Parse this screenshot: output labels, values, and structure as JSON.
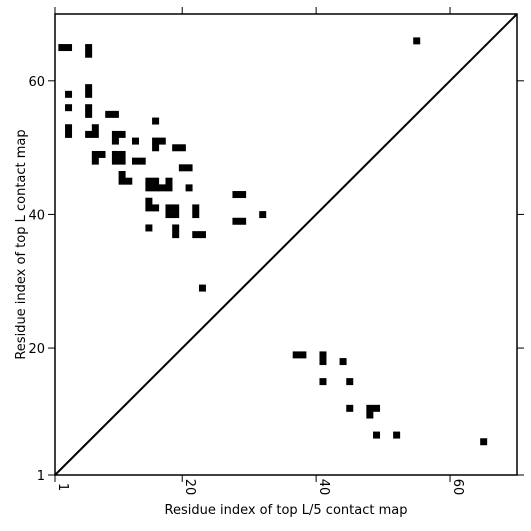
{
  "chart_data": {
    "type": "scatter",
    "title": "",
    "xlabel": "Residue index of top L/5 contact map",
    "ylabel": "Residue index of top L contact map",
    "xlim": [
      1,
      70
    ],
    "ylim": [
      1,
      70
    ],
    "xticks": [
      1,
      20,
      40,
      60
    ],
    "yticks": [
      1,
      20,
      40,
      60
    ],
    "marker": "square",
    "marker_color": "#000000",
    "diagonal": true,
    "grid": false,
    "upper_triangle_contacts": {
      "name": "",
      "points": [
        [
          2,
          65
        ],
        [
          3,
          65
        ],
        [
          6,
          65
        ],
        [
          6,
          64
        ],
        [
          55,
          66
        ],
        [
          3,
          58
        ],
        [
          6,
          59
        ],
        [
          6,
          58
        ],
        [
          3,
          56
        ],
        [
          6,
          56
        ],
        [
          6,
          55
        ],
        [
          9,
          55
        ],
        [
          10,
          55
        ],
        [
          3,
          53
        ],
        [
          3,
          52
        ],
        [
          7,
          53
        ],
        [
          6,
          52
        ],
        [
          7,
          52
        ],
        [
          10,
          52
        ],
        [
          11,
          52
        ],
        [
          10,
          51
        ],
        [
          13,
          51
        ],
        [
          16,
          54
        ],
        [
          16,
          51
        ],
        [
          17,
          51
        ],
        [
          16,
          50
        ],
        [
          19,
          50
        ],
        [
          20,
          50
        ],
        [
          7,
          49
        ],
        [
          8,
          49
        ],
        [
          7,
          48
        ],
        [
          10,
          49
        ],
        [
          11,
          49
        ],
        [
          10,
          48
        ],
        [
          11,
          48
        ],
        [
          13,
          48
        ],
        [
          14,
          48
        ],
        [
          20,
          47
        ],
        [
          21,
          47
        ],
        [
          11,
          46
        ],
        [
          11,
          45
        ],
        [
          12,
          45
        ],
        [
          15,
          45
        ],
        [
          16,
          45
        ],
        [
          15,
          44
        ],
        [
          16,
          44
        ],
        [
          18,
          45
        ],
        [
          17,
          44
        ],
        [
          18,
          44
        ],
        [
          21,
          44
        ],
        [
          28,
          43
        ],
        [
          29,
          43
        ],
        [
          15,
          42
        ],
        [
          15,
          41
        ],
        [
          16,
          41
        ],
        [
          18,
          41
        ],
        [
          19,
          41
        ],
        [
          18,
          40
        ],
        [
          19,
          40
        ],
        [
          22,
          41
        ],
        [
          22,
          40
        ],
        [
          32,
          40
        ],
        [
          28,
          39
        ],
        [
          29,
          39
        ],
        [
          15,
          38
        ],
        [
          19,
          38
        ],
        [
          19,
          37
        ],
        [
          22,
          37
        ],
        [
          23,
          37
        ],
        [
          23,
          29
        ]
      ]
    },
    "lower_triangle_contacts": {
      "name": "",
      "points": [
        [
          37,
          19
        ],
        [
          38,
          19
        ],
        [
          41,
          19
        ],
        [
          41,
          18
        ],
        [
          44,
          18
        ],
        [
          41,
          15
        ],
        [
          45,
          15
        ],
        [
          45,
          11
        ],
        [
          48,
          11
        ],
        [
          49,
          11
        ],
        [
          48,
          10
        ],
        [
          49,
          7
        ],
        [
          52,
          7
        ],
        [
          65,
          6
        ]
      ]
    }
  }
}
